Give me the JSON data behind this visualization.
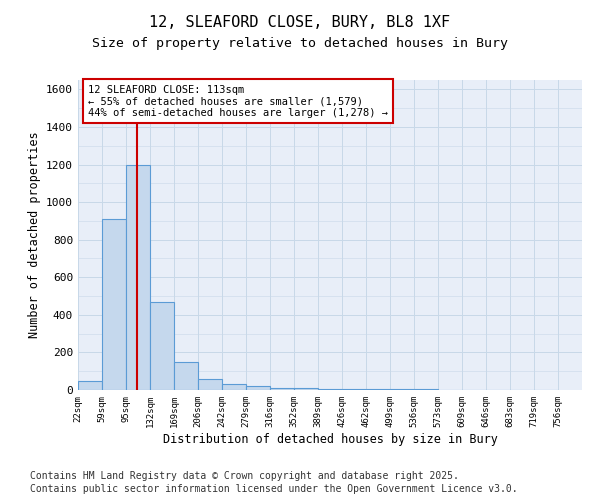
{
  "title_line1": "12, SLEAFORD CLOSE, BURY, BL8 1XF",
  "title_line2": "Size of property relative to detached houses in Bury",
  "xlabel": "Distribution of detached houses by size in Bury",
  "ylabel": "Number of detached properties",
  "bar_color": "#c5d8ed",
  "bar_edge_color": "#5b9bd5",
  "bin_labels": [
    "22sqm",
    "59sqm",
    "95sqm",
    "132sqm",
    "169sqm",
    "206sqm",
    "242sqm",
    "279sqm",
    "316sqm",
    "352sqm",
    "389sqm",
    "426sqm",
    "462sqm",
    "499sqm",
    "536sqm",
    "573sqm",
    "609sqm",
    "646sqm",
    "683sqm",
    "719sqm",
    "756sqm"
  ],
  "bin_edges": [
    22,
    59,
    95,
    132,
    169,
    206,
    242,
    279,
    316,
    352,
    389,
    426,
    462,
    499,
    536,
    573,
    609,
    646,
    683,
    719,
    756
  ],
  "bar_heights": [
    50,
    910,
    1200,
    470,
    150,
    60,
    30,
    20,
    10,
    8,
    5,
    4,
    3,
    3,
    3,
    2,
    2,
    2,
    2,
    2
  ],
  "property_size": 113,
  "property_line_color": "#cc0000",
  "annotation_text": "12 SLEAFORD CLOSE: 113sqm\n← 55% of detached houses are smaller (1,579)\n44% of semi-detached houses are larger (1,278) →",
  "ylim": [
    0,
    1650
  ],
  "yticks": [
    0,
    200,
    400,
    600,
    800,
    1000,
    1200,
    1400,
    1600
  ],
  "grid_color": "#c8d8e8",
  "bg_color": "#e8eef8",
  "footer_line1": "Contains HM Land Registry data © Crown copyright and database right 2025.",
  "footer_line2": "Contains public sector information licensed under the Open Government Licence v3.0.",
  "footer_fontsize": 7,
  "title_fontsize1": 11,
  "title_fontsize2": 9.5
}
